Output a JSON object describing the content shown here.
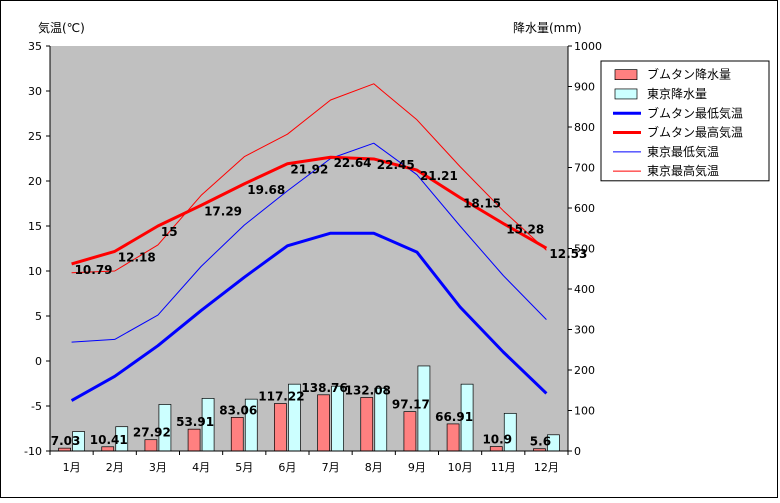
{
  "chart_data": {
    "type": "bar",
    "categories": [
      "1月",
      "2月",
      "3月",
      "4月",
      "5月",
      "6月",
      "7月",
      "8月",
      "9月",
      "10月",
      "11月",
      "12月"
    ],
    "y_left": {
      "label": "気温(℃)",
      "min": -10,
      "max": 35,
      "step": 5
    },
    "y_right": {
      "label": "降水量(mm)",
      "min": 0,
      "max": 1000,
      "step": 100
    },
    "series": [
      {
        "name": "ブムタン降水量",
        "kind": "bar",
        "axis": "right",
        "color": "#ff8080",
        "values": [
          7.03,
          10.41,
          27.92,
          53.91,
          83.06,
          117.22,
          138.76,
          132.08,
          97.17,
          66.91,
          10.9,
          5.6
        ],
        "labels": [
          "7.03",
          "10.41",
          "27.92",
          "53.91",
          "83.06",
          "117.22",
          "138.76",
          "132.08",
          "97.17",
          "66.91",
          "10.9",
          "5.6"
        ]
      },
      {
        "name": "東京降水量",
        "kind": "bar",
        "axis": "right",
        "color": "#ccffff",
        "values": [
          48,
          60,
          115,
          130,
          128,
          165,
          160,
          155,
          210,
          165,
          93,
          40
        ]
      },
      {
        "name": "ブムタン最低気温",
        "kind": "line",
        "axis": "left",
        "color": "#0000ff",
        "width": 3,
        "values": [
          -4.4,
          -1.7,
          1.7,
          5.6,
          9.3,
          12.8,
          14.2,
          14.2,
          12.1,
          6.0,
          1.0,
          -3.6
        ]
      },
      {
        "name": "ブムタン最高気温",
        "kind": "line",
        "axis": "left",
        "color": "#ff0000",
        "width": 3,
        "values": [
          10.79,
          12.18,
          15,
          17.29,
          19.68,
          21.92,
          22.64,
          22.45,
          21.21,
          18.15,
          15.28,
          12.53
        ],
        "labels": [
          "10.79",
          "12.18",
          "15",
          "17.29",
          "19.68",
          "21.92",
          "22.64",
          "22.45",
          "21.21",
          "18.15",
          "15.28",
          "12.53"
        ]
      },
      {
        "name": "東京最低気温",
        "kind": "line",
        "axis": "left",
        "color": "#0000ff",
        "width": 1,
        "values": [
          2.1,
          2.4,
          5.1,
          10.5,
          15.1,
          18.9,
          22.5,
          24.2,
          20.7,
          15.0,
          9.5,
          4.6
        ]
      },
      {
        "name": "東京最高気温",
        "kind": "line",
        "axis": "left",
        "color": "#ff0000",
        "width": 1,
        "values": [
          9.8,
          10.0,
          12.9,
          18.4,
          22.7,
          25.2,
          29.0,
          30.8,
          26.8,
          21.6,
          16.7,
          12.3
        ]
      }
    ],
    "legend": {
      "placement": "right"
    },
    "grid": false
  }
}
